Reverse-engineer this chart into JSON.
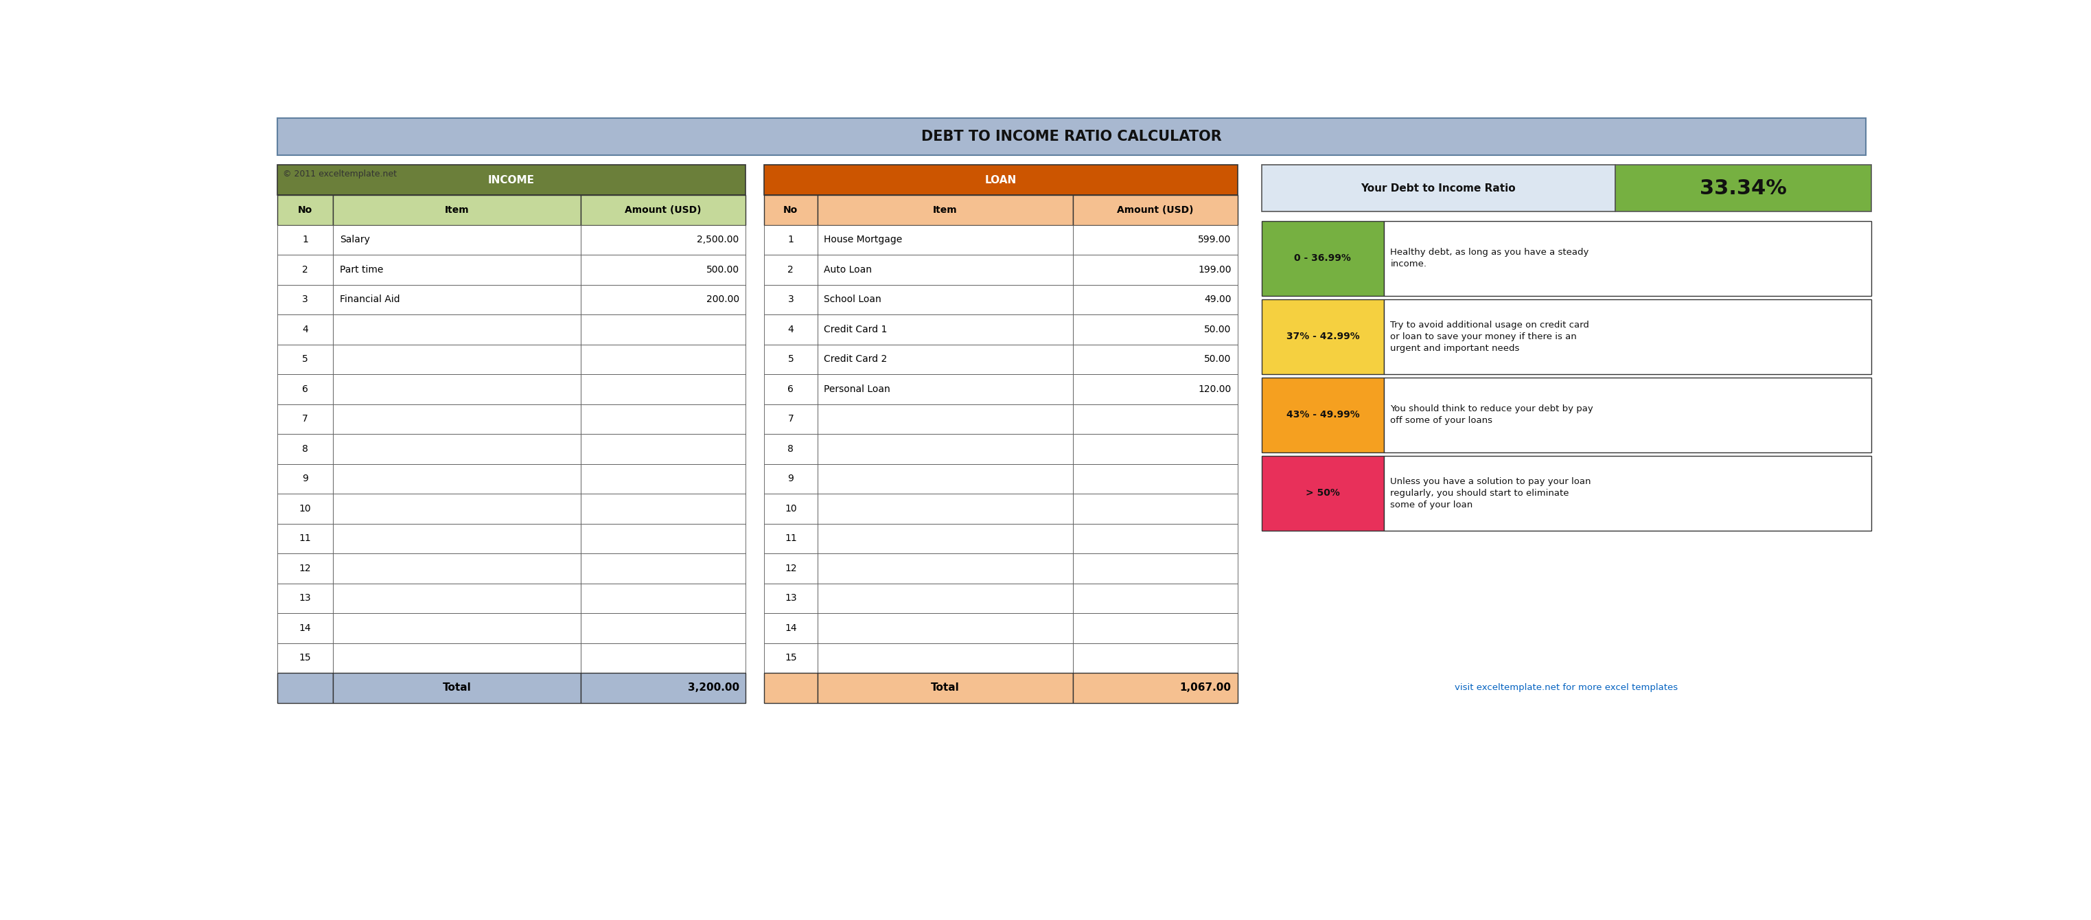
{
  "title": "DEBT TO INCOME RATIO CALCULATOR",
  "copyright": "© 2011 exceltemplate.net",
  "title_bg": "#a8b8d0",
  "income_header_bg": "#6b7f3a",
  "income_subheader_bg": "#c5d99a",
  "income_header_text": "INCOME",
  "income_cols": [
    "No",
    "Item",
    "Amount (USD)"
  ],
  "income_rows": [
    [
      "1",
      "Salary",
      "2,500.00"
    ],
    [
      "2",
      "Part time",
      "500.00"
    ],
    [
      "3",
      "Financial Aid",
      "200.00"
    ],
    [
      "4",
      "",
      ""
    ],
    [
      "5",
      "",
      ""
    ],
    [
      "6",
      "",
      ""
    ],
    [
      "7",
      "",
      ""
    ],
    [
      "8",
      "",
      ""
    ],
    [
      "9",
      "",
      ""
    ],
    [
      "10",
      "",
      ""
    ],
    [
      "11",
      "",
      ""
    ],
    [
      "12",
      "",
      ""
    ],
    [
      "13",
      "",
      ""
    ],
    [
      "14",
      "",
      ""
    ],
    [
      "15",
      "",
      ""
    ]
  ],
  "income_total": [
    "Total",
    "3,200.00"
  ],
  "income_total_bg": "#a8b8d0",
  "loan_header_bg": "#cc5500",
  "loan_subheader_bg": "#f5c090",
  "loan_header_text": "LOAN",
  "loan_cols": [
    "No",
    "Item",
    "Amount (USD)"
  ],
  "loan_rows": [
    [
      "1",
      "House Mortgage",
      "599.00"
    ],
    [
      "2",
      "Auto Loan",
      "199.00"
    ],
    [
      "3",
      "School Loan",
      "49.00"
    ],
    [
      "4",
      "Credit Card 1",
      "50.00"
    ],
    [
      "5",
      "Credit Card 2",
      "50.00"
    ],
    [
      "6",
      "Personal Loan",
      "120.00"
    ],
    [
      "7",
      "",
      ""
    ],
    [
      "8",
      "",
      ""
    ],
    [
      "9",
      "",
      ""
    ],
    [
      "10",
      "",
      ""
    ],
    [
      "11",
      "",
      ""
    ],
    [
      "12",
      "",
      ""
    ],
    [
      "13",
      "",
      ""
    ],
    [
      "14",
      "",
      ""
    ],
    [
      "15",
      "",
      ""
    ]
  ],
  "loan_total": [
    "Total",
    "1,067.00"
  ],
  "loan_total_bg": "#f5c090",
  "ratio_label": "Your Debt to Income Ratio",
  "ratio_value": "33.34%",
  "ratio_label_bg": "#dce6f1",
  "ratio_value_bg": "#76b041",
  "ranges": [
    {
      "range": "0 - 36.99%",
      "desc": "Healthy debt, as long as you have a steady\nincome.",
      "bg": "#76b041"
    },
    {
      "range": "37% - 42.99%",
      "desc": "Try to avoid additional usage on credit card\nor loan to save your money if there is an\nurgent and important needs",
      "bg": "#f5d040"
    },
    {
      "range": "43% - 49.99%",
      "desc": "You should think to reduce your debt by pay\noff some of your loans",
      "bg": "#f5a020"
    },
    {
      "range": "> 50%",
      "desc": "Unless you have a solution to pay your loan\nregularly, you should start to eliminate\nsome of your loan",
      "bg": "#e8305a"
    }
  ],
  "footer_link": "visit exceltemplate.net for more excel templates",
  "footer_color": "#0563c1"
}
